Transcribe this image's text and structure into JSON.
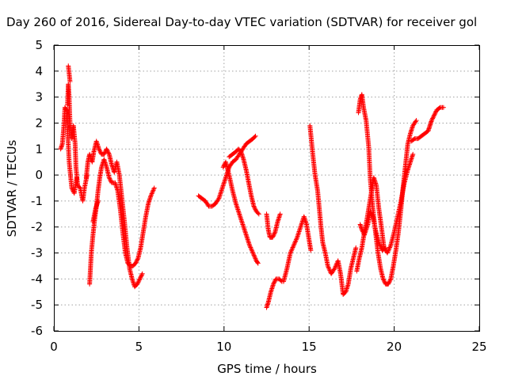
{
  "chart_data": {
    "type": "scatter",
    "title": "Day 260 of 2016, Sidereal Day-to-day VTEC variation (SDTVAR) for receiver gol",
    "xlabel": "GPS time / hours",
    "ylabel": "SDTVAR / TECUs",
    "xlim": [
      0,
      25
    ],
    "ylim": [
      -6,
      5
    ],
    "xticks": [
      "0",
      "5",
      "10",
      "15",
      "20",
      "25"
    ],
    "yticks": [
      "-6",
      "-5",
      "-4",
      "-3",
      "-2",
      "-1",
      "0",
      "1",
      "2",
      "3",
      "4",
      "5"
    ],
    "grid": true,
    "marker": "+",
    "color": "#ff0000",
    "tracks": [
      [
        [
          0.4,
          1.0
        ],
        [
          0.5,
          1.2
        ],
        [
          0.6,
          2.0
        ],
        [
          0.65,
          2.6
        ],
        [
          0.75,
          2.5
        ],
        [
          0.8,
          1.8
        ],
        [
          0.9,
          0.5
        ],
        [
          1.05,
          -0.5
        ],
        [
          1.2,
          -0.7
        ],
        [
          1.35,
          -0.1
        ]
      ],
      [
        [
          0.8,
          2.7
        ],
        [
          0.85,
          3.5
        ],
        [
          0.9,
          3.0
        ],
        [
          0.95,
          2.0
        ],
        [
          1.05,
          1.4
        ],
        [
          1.15,
          1.9
        ],
        [
          1.25,
          1.2
        ],
        [
          1.3,
          0.3
        ],
        [
          1.4,
          -0.4
        ],
        [
          1.55,
          -0.5
        ],
        [
          1.7,
          -1.0
        ],
        [
          1.8,
          -0.5
        ],
        [
          1.95,
          0.0
        ]
      ],
      [
        [
          0.85,
          4.2
        ],
        [
          0.95,
          3.6
        ]
      ],
      [
        [
          1.9,
          -0.1
        ],
        [
          2.0,
          0.5
        ],
        [
          2.1,
          0.8
        ],
        [
          2.25,
          0.5
        ],
        [
          2.35,
          0.9
        ],
        [
          2.5,
          1.3
        ],
        [
          2.65,
          1.0
        ],
        [
          2.8,
          0.8
        ],
        [
          2.95,
          0.8
        ],
        [
          3.1,
          1.0
        ],
        [
          3.25,
          0.8
        ],
        [
          3.4,
          0.4
        ],
        [
          3.55,
          0.1
        ],
        [
          3.7,
          0.5
        ],
        [
          3.85,
          0.0
        ],
        [
          4.0,
          -0.9
        ],
        [
          4.15,
          -1.8
        ],
        [
          4.3,
          -2.8
        ],
        [
          4.45,
          -3.6
        ],
        [
          4.6,
          -4.0
        ],
        [
          4.75,
          -4.3
        ],
        [
          4.9,
          -4.2
        ],
        [
          5.05,
          -4.0
        ],
        [
          5.2,
          -3.8
        ]
      ],
      [
        [
          2.1,
          -4.2
        ],
        [
          2.15,
          -3.6
        ],
        [
          2.2,
          -3.0
        ],
        [
          2.3,
          -2.3
        ],
        [
          2.4,
          -1.7
        ],
        [
          2.5,
          -1.2
        ],
        [
          2.6,
          -0.6
        ],
        [
          2.7,
          -0.1
        ],
        [
          2.8,
          0.3
        ],
        [
          2.95,
          0.6
        ],
        [
          3.1,
          0.3
        ],
        [
          3.25,
          -0.1
        ],
        [
          3.4,
          -0.3
        ],
        [
          3.6,
          -0.3
        ],
        [
          3.75,
          -0.6
        ],
        [
          3.9,
          -1.3
        ],
        [
          4.05,
          -2.2
        ],
        [
          4.2,
          -3.0
        ],
        [
          4.35,
          -3.4
        ],
        [
          4.5,
          -3.5
        ],
        [
          4.65,
          -3.5
        ],
        [
          4.8,
          -3.4
        ],
        [
          4.95,
          -3.2
        ],
        [
          5.1,
          -2.8
        ],
        [
          5.25,
          -2.2
        ],
        [
          5.4,
          -1.6
        ],
        [
          5.55,
          -1.1
        ],
        [
          5.7,
          -0.8
        ],
        [
          5.9,
          -0.5
        ]
      ],
      [
        [
          2.3,
          -1.8
        ],
        [
          2.45,
          -1.3
        ],
        [
          2.6,
          -1.0
        ]
      ],
      [
        [
          8.5,
          -0.8
        ],
        [
          8.7,
          -0.9
        ],
        [
          8.9,
          -1.0
        ],
        [
          9.1,
          -1.2
        ],
        [
          9.3,
          -1.2
        ],
        [
          9.5,
          -1.1
        ],
        [
          9.7,
          -0.9
        ],
        [
          9.9,
          -0.5
        ],
        [
          10.1,
          -0.1
        ],
        [
          10.3,
          0.3
        ],
        [
          10.5,
          0.5
        ],
        [
          10.7,
          0.6
        ],
        [
          10.9,
          0.8
        ],
        [
          11.1,
          1.0
        ],
        [
          11.3,
          1.2
        ],
        [
          11.5,
          1.3
        ],
        [
          11.7,
          1.4
        ],
        [
          11.85,
          1.5
        ]
      ],
      [
        [
          9.95,
          0.3
        ],
        [
          10.1,
          0.5
        ],
        [
          10.3,
          0.0
        ],
        [
          10.5,
          -0.6
        ],
        [
          10.7,
          -1.1
        ],
        [
          10.9,
          -1.5
        ],
        [
          11.1,
          -1.9
        ],
        [
          11.3,
          -2.3
        ],
        [
          11.5,
          -2.7
        ],
        [
          11.7,
          -3.0
        ],
        [
          11.9,
          -3.3
        ],
        [
          12.0,
          -3.4
        ]
      ],
      [
        [
          10.3,
          0.7
        ],
        [
          10.5,
          0.8
        ],
        [
          10.7,
          0.9
        ],
        [
          10.85,
          1.0
        ],
        [
          11.0,
          0.9
        ],
        [
          11.15,
          0.6
        ],
        [
          11.3,
          0.2
        ],
        [
          11.45,
          -0.3
        ],
        [
          11.6,
          -0.8
        ],
        [
          11.75,
          -1.2
        ],
        [
          11.9,
          -1.4
        ],
        [
          12.05,
          -1.5
        ]
      ],
      [
        [
          12.5,
          -5.1
        ],
        [
          12.6,
          -4.9
        ],
        [
          12.75,
          -4.5
        ],
        [
          12.9,
          -4.2
        ],
        [
          13.05,
          -4.0
        ],
        [
          13.25,
          -4.0
        ],
        [
          13.4,
          -4.1
        ]
      ],
      [
        [
          12.5,
          -1.5
        ],
        [
          12.6,
          -2.1
        ],
        [
          12.7,
          -2.4
        ],
        [
          12.85,
          -2.4
        ],
        [
          13.0,
          -2.2
        ],
        [
          13.15,
          -1.8
        ],
        [
          13.3,
          -1.5
        ]
      ],
      [
        [
          13.5,
          -4.1
        ],
        [
          13.7,
          -3.6
        ],
        [
          13.9,
          -3.0
        ],
        [
          14.1,
          -2.7
        ],
        [
          14.3,
          -2.4
        ],
        [
          14.5,
          -2.0
        ],
        [
          14.7,
          -1.6
        ],
        [
          14.85,
          -1.9
        ],
        [
          15.0,
          -2.5
        ],
        [
          15.1,
          -2.9
        ]
      ],
      [
        [
          15.05,
          1.9
        ],
        [
          15.2,
          0.9
        ],
        [
          15.35,
          0.0
        ],
        [
          15.5,
          -0.6
        ],
        [
          15.6,
          -1.3
        ],
        [
          15.7,
          -2.0
        ],
        [
          15.8,
          -2.6
        ],
        [
          15.95,
          -3.0
        ],
        [
          16.1,
          -3.5
        ],
        [
          16.3,
          -3.8
        ],
        [
          16.5,
          -3.6
        ],
        [
          16.7,
          -3.3
        ],
        [
          16.85,
          -3.8
        ],
        [
          17.0,
          -4.6
        ],
        [
          17.15,
          -4.5
        ],
        [
          17.3,
          -4.2
        ],
        [
          17.45,
          -3.6
        ],
        [
          17.6,
          -3.2
        ],
        [
          17.75,
          -2.8
        ]
      ],
      [
        [
          17.8,
          -3.7
        ],
        [
          17.95,
          -3.2
        ],
        [
          18.1,
          -2.8
        ],
        [
          18.25,
          -2.2
        ],
        [
          18.4,
          -1.7
        ],
        [
          18.55,
          -1.1
        ],
        [
          18.7,
          -0.5
        ],
        [
          18.8,
          -0.1
        ],
        [
          18.95,
          -0.4
        ],
        [
          19.1,
          -1.3
        ],
        [
          19.25,
          -2.0
        ],
        [
          19.4,
          -2.8
        ],
        [
          19.6,
          -3.0
        ],
        [
          19.8,
          -2.7
        ],
        [
          20.0,
          -2.2
        ],
        [
          20.2,
          -1.6
        ],
        [
          20.4,
          -1.0
        ],
        [
          20.6,
          -0.3
        ],
        [
          20.8,
          0.2
        ],
        [
          20.95,
          0.5
        ],
        [
          21.1,
          0.8
        ]
      ],
      [
        [
          17.9,
          2.4
        ],
        [
          18.0,
          2.9
        ],
        [
          18.1,
          3.1
        ],
        [
          18.2,
          2.6
        ],
        [
          18.35,
          2.1
        ],
        [
          18.5,
          1.1
        ],
        [
          18.6,
          -0.2
        ],
        [
          18.75,
          -1.3
        ],
        [
          18.9,
          -2.2
        ],
        [
          19.05,
          -3.0
        ],
        [
          19.2,
          -3.6
        ],
        [
          19.35,
          -4.0
        ],
        [
          19.5,
          -4.2
        ],
        [
          19.65,
          -4.2
        ],
        [
          19.8,
          -4.0
        ],
        [
          19.95,
          -3.5
        ],
        [
          20.1,
          -2.9
        ],
        [
          20.25,
          -2.2
        ],
        [
          20.4,
          -1.3
        ],
        [
          20.5,
          -0.6
        ],
        [
          20.6,
          0.0
        ],
        [
          20.7,
          0.6
        ],
        [
          20.8,
          1.2
        ],
        [
          20.95,
          1.6
        ],
        [
          21.1,
          1.9
        ],
        [
          21.3,
          2.1
        ]
      ],
      [
        [
          18.0,
          -1.9
        ],
        [
          18.1,
          -2.1
        ],
        [
          18.25,
          -2.3
        ],
        [
          18.45,
          -1.9
        ],
        [
          18.6,
          -1.4
        ],
        [
          18.75,
          -1.6
        ],
        [
          18.9,
          -2.1
        ],
        [
          19.1,
          -2.6
        ],
        [
          19.3,
          -2.9
        ],
        [
          19.5,
          -2.8
        ]
      ],
      [
        [
          21.0,
          1.3
        ],
        [
          21.2,
          1.4
        ],
        [
          21.4,
          1.4
        ],
        [
          21.6,
          1.5
        ],
        [
          21.8,
          1.6
        ],
        [
          22.0,
          1.7
        ],
        [
          22.1,
          1.9
        ],
        [
          22.2,
          2.1
        ],
        [
          22.35,
          2.3
        ],
        [
          22.5,
          2.5
        ],
        [
          22.7,
          2.6
        ],
        [
          22.9,
          2.6
        ]
      ]
    ]
  }
}
